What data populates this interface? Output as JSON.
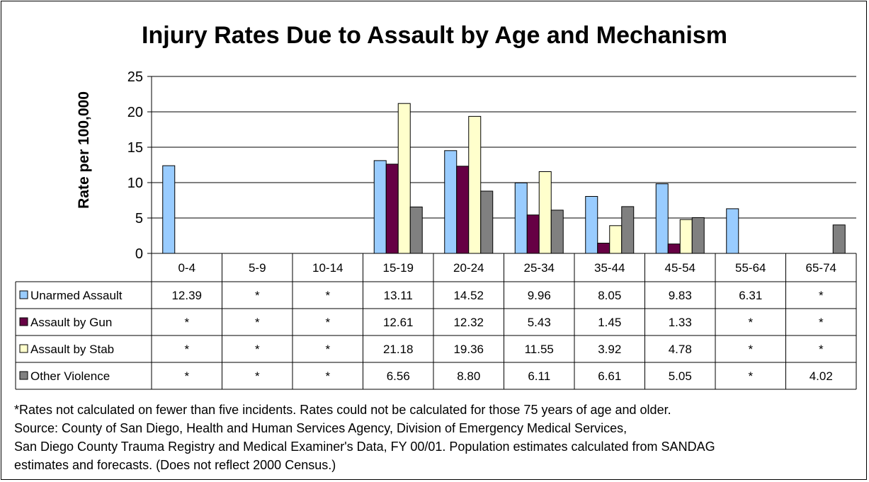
{
  "chart_data": {
    "type": "bar",
    "title": "Injury Rates Due to Assault by Age and Mechanism",
    "ylabel": "Rate per 100,000",
    "xlabel": "",
    "ylim": [
      0,
      25
    ],
    "yticks": [
      "0",
      "5",
      "10",
      "15",
      "20",
      "25"
    ],
    "grid": true,
    "legend": "data-table-left",
    "categories": [
      "0-4",
      "5-9",
      "10-14",
      "15-19",
      "20-24",
      "25-34",
      "35-44",
      "45-54",
      "55-64",
      "65-74"
    ],
    "series": [
      {
        "name": "Unarmed Assault",
        "color": "#99ccff",
        "values": [
          12.39,
          null,
          null,
          13.11,
          14.52,
          9.96,
          8.05,
          9.83,
          6.31,
          null
        ],
        "labels": [
          "12.39",
          "*",
          "*",
          "13.11",
          "14.52",
          "9.96",
          "8.05",
          "9.83",
          "6.31",
          "*"
        ]
      },
      {
        "name": "Assault by Gun",
        "color": "#660044",
        "values": [
          null,
          null,
          null,
          12.61,
          12.32,
          5.43,
          1.45,
          1.33,
          null,
          null
        ],
        "labels": [
          "*",
          "*",
          "*",
          "12.61",
          "12.32",
          "5.43",
          "1.45",
          "1.33",
          "*",
          "*"
        ]
      },
      {
        "name": "Assault by Stab",
        "color": "#ffffcc",
        "values": [
          null,
          null,
          null,
          21.18,
          19.36,
          11.55,
          3.92,
          4.78,
          null,
          null
        ],
        "labels": [
          "*",
          "*",
          "*",
          "21.18",
          "19.36",
          "11.55",
          "3.92",
          "4.78",
          "*",
          "*"
        ]
      },
      {
        "name": "Other Violence",
        "color": "#808080",
        "values": [
          null,
          null,
          null,
          6.56,
          8.8,
          6.11,
          6.61,
          5.05,
          null,
          4.02
        ],
        "labels": [
          "*",
          "*",
          "*",
          "6.56",
          "8.80",
          "6.11",
          "6.61",
          "5.05",
          "*",
          "4.02"
        ]
      }
    ]
  },
  "footnotes": [
    "*Rates not calculated on fewer than five incidents.  Rates could not be calculated for those 75 years of age and older.",
    "Source: County of San Diego, Health and Human Services Agency, Division of Emergency Medical Services,",
    "San Diego County Trauma Registry and Medical Examiner's Data, FY 00/01.  Population estimates calculated from SANDAG",
    "estimates and forecasts.  (Does not reflect 2000 Census.)"
  ]
}
